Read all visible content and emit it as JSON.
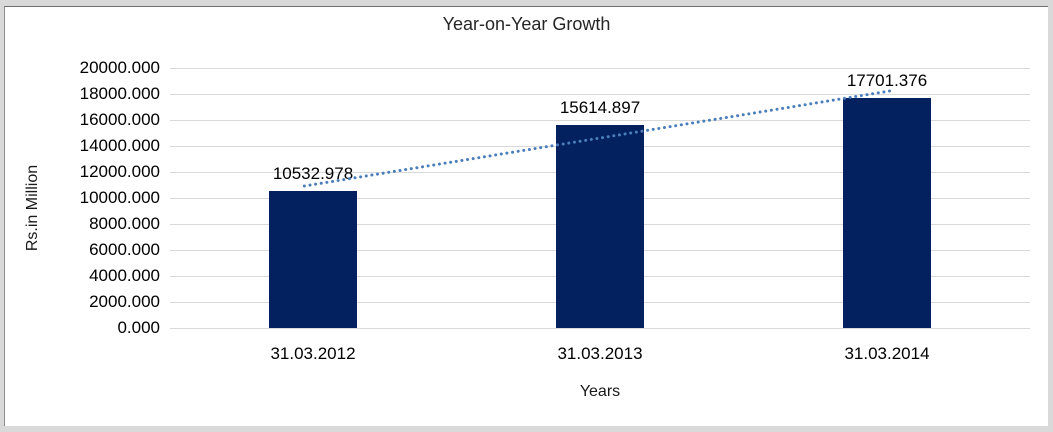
{
  "frame": {
    "background": "#d9d9d9"
  },
  "chart_data": {
    "type": "bar",
    "title": "Year-on-Year Growth",
    "xlabel": "Years",
    "ylabel": "Rs.in Million",
    "categories": [
      "31.03.2012",
      "31.03.2013",
      "31.03.2014"
    ],
    "values": [
      10532.978,
      15614.897,
      17701.376
    ],
    "data_labels": [
      "10532.978",
      "15614.897",
      "17701.376"
    ],
    "ylim": [
      0,
      20000
    ],
    "ytick_step": 2000,
    "ytick_labels": [
      "0.000",
      "2000.000",
      "4000.000",
      "6000.000",
      "8000.000",
      "10000.000",
      "12000.000",
      "14000.000",
      "16000.000",
      "18000.000",
      "20000.000"
    ],
    "grid": true,
    "legend": "none",
    "bar_color": "#02215e",
    "gridline_color": "#d9d9d9",
    "trendline": {
      "style": "dotted",
      "color": "#4a7ebb"
    }
  }
}
